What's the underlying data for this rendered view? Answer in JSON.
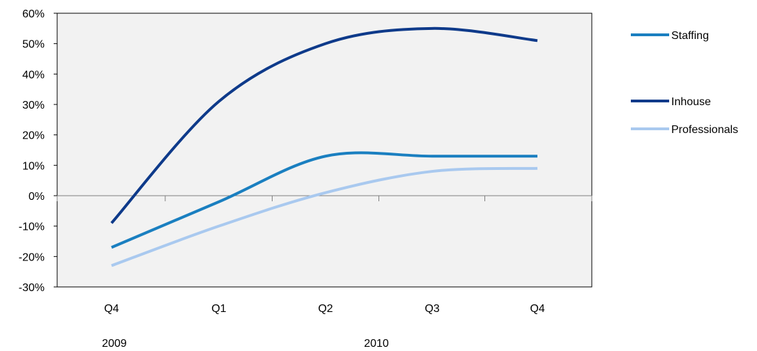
{
  "chart_data": {
    "type": "line",
    "categories": [
      "Q4",
      "Q1",
      "Q2",
      "Q3",
      "Q4"
    ],
    "year_labels": [
      "2009",
      "2010"
    ],
    "ylim": [
      -30,
      60
    ],
    "yticks": [
      "-30%",
      "-20%",
      "-10%",
      "0%",
      "10%",
      "20%",
      "30%",
      "40%",
      "50%",
      "60%"
    ],
    "ytick_values": [
      -30,
      -20,
      -10,
      0,
      10,
      20,
      30,
      40,
      50,
      60
    ],
    "grid": false,
    "plot_background": "#f2f2f2",
    "legend_position": "right",
    "series": [
      {
        "name": "Staffing",
        "color": "#1a7fc0",
        "values": [
          -17,
          -2,
          13,
          13,
          13
        ]
      },
      {
        "name": "Inhouse",
        "color": "#0e3a8a",
        "values": [
          -9,
          31,
          50,
          55,
          51
        ]
      },
      {
        "name": "Professionals",
        "color": "#a9c9ef",
        "values": [
          -23,
          -10,
          1,
          8,
          9
        ]
      }
    ]
  }
}
